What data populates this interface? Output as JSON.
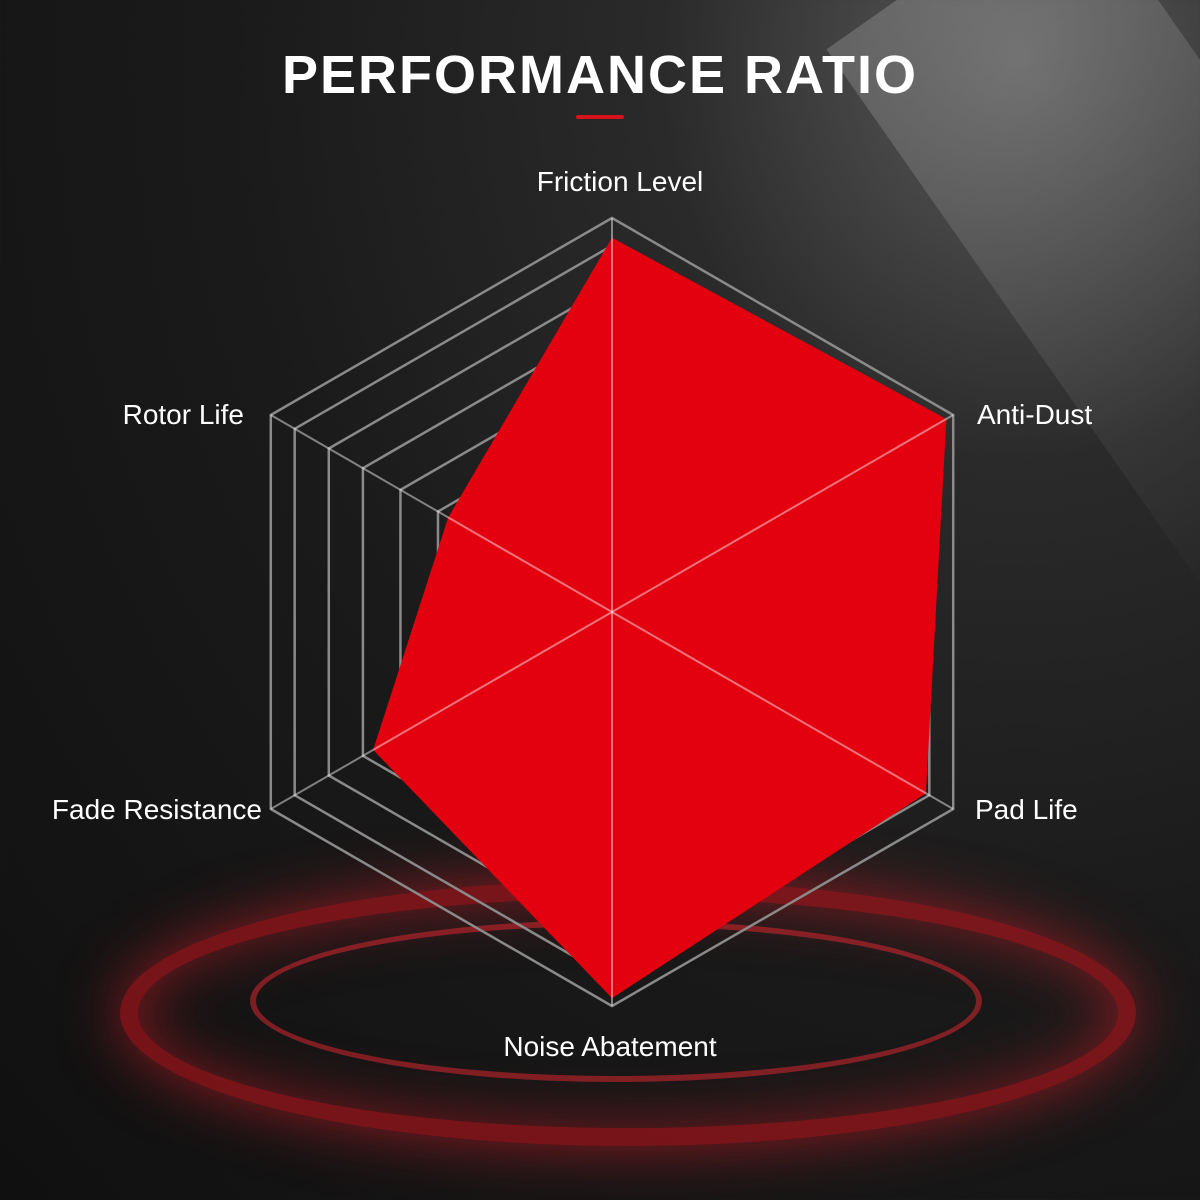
{
  "title": "PERFORMANCE RATIO",
  "chart_data": {
    "type": "radar",
    "title": "PERFORMANCE RATIO",
    "categories": [
      "Friction Level",
      "Anti-Dust",
      "Pad Life",
      "Noise Abatement",
      "Fade Resistance",
      "Rotor Life"
    ],
    "values": [
      95,
      98,
      92,
      98,
      70,
      48
    ],
    "range": [
      0,
      100
    ],
    "grid_levels": [
      51,
      62,
      73,
      83,
      93,
      100
    ],
    "grid": true,
    "fill_color": "#e3000f",
    "grid_color": "#8a8a8a"
  }
}
